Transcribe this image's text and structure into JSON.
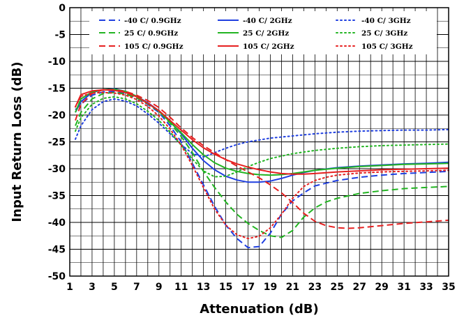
{
  "chart_data": {
    "type": "line",
    "xlabel": "Attenuation (dB)",
    "ylabel": "Input Return Loss (dB)",
    "xlim": [
      1,
      35
    ],
    "ylim": [
      -50,
      0
    ],
    "xticks": [
      1,
      3,
      5,
      7,
      9,
      11,
      13,
      15,
      17,
      19,
      21,
      23,
      25,
      27,
      29,
      31,
      33,
      35
    ],
    "yticks": [
      0,
      -5,
      -10,
      -15,
      -20,
      -25,
      -30,
      -35,
      -40,
      -45,
      -50
    ],
    "grid": true,
    "legend_position": "top",
    "series": [
      {
        "name": "-40 C/ 0.9GHz",
        "color": "#1f3fe0",
        "dash": "dashed",
        "points": [
          [
            1.5,
            -19
          ],
          [
            2,
            -18
          ],
          [
            3,
            -16.3
          ],
          [
            4,
            -15.7
          ],
          [
            5,
            -15.6
          ],
          [
            6,
            -16
          ],
          [
            7,
            -16.8
          ],
          [
            8,
            -18
          ],
          [
            9,
            -19.5
          ],
          [
            10,
            -22
          ],
          [
            11,
            -25
          ],
          [
            12,
            -29
          ],
          [
            13,
            -33
          ],
          [
            14,
            -37
          ],
          [
            15,
            -40.5
          ],
          [
            16,
            -43
          ],
          [
            17,
            -44.7
          ],
          [
            18,
            -44.5
          ],
          [
            19,
            -42
          ],
          [
            20,
            -38.5
          ],
          [
            21,
            -36
          ],
          [
            22,
            -34.5
          ],
          [
            23,
            -33.2
          ],
          [
            25,
            -32.2
          ],
          [
            27,
            -31.6
          ],
          [
            29,
            -31.2
          ],
          [
            31,
            -30.9
          ],
          [
            33,
            -30.7
          ],
          [
            35,
            -30.5
          ]
        ]
      },
      {
        "name": "-40 C/ 2GHz",
        "color": "#1f3fe0",
        "dash": "solid",
        "points": [
          [
            1.5,
            -19.5
          ],
          [
            2,
            -17.5
          ],
          [
            3,
            -15.8
          ],
          [
            4,
            -15.3
          ],
          [
            5,
            -15.1
          ],
          [
            6,
            -15.6
          ],
          [
            7,
            -16.5
          ],
          [
            8,
            -17.7
          ],
          [
            9,
            -19.2
          ],
          [
            10,
            -21.2
          ],
          [
            11,
            -23.5
          ],
          [
            12,
            -26.2
          ],
          [
            13,
            -28.5
          ],
          [
            14,
            -30.2
          ],
          [
            15,
            -31.4
          ],
          [
            16,
            -32.1
          ],
          [
            17,
            -32.5
          ],
          [
            18,
            -32.5
          ],
          [
            19,
            -32.3
          ],
          [
            20,
            -31.8
          ],
          [
            21,
            -31.2
          ],
          [
            22,
            -30.7
          ],
          [
            23,
            -30.3
          ],
          [
            25,
            -29.8
          ],
          [
            27,
            -29.5
          ],
          [
            29,
            -29.3
          ],
          [
            31,
            -29.1
          ],
          [
            33,
            -29
          ],
          [
            35,
            -28.8
          ]
        ]
      },
      {
        "name": "-40 C/ 3GHz",
        "color": "#1f3fe0",
        "dash": "dotted",
        "points": [
          [
            1.5,
            -24.5
          ],
          [
            2,
            -22
          ],
          [
            3,
            -19
          ],
          [
            4,
            -17.5
          ],
          [
            5,
            -17
          ],
          [
            6,
            -17.4
          ],
          [
            7,
            -18.3
          ],
          [
            8,
            -19.8
          ],
          [
            9,
            -21.5
          ],
          [
            10,
            -23.5
          ],
          [
            11,
            -25.5
          ],
          [
            12,
            -27.2
          ],
          [
            13,
            -27.8
          ],
          [
            14,
            -27
          ],
          [
            15,
            -26.2
          ],
          [
            16,
            -25.5
          ],
          [
            17,
            -25
          ],
          [
            19,
            -24.3
          ],
          [
            21,
            -23.9
          ],
          [
            23,
            -23.5
          ],
          [
            25,
            -23.2
          ],
          [
            27,
            -23
          ],
          [
            29,
            -22.9
          ],
          [
            31,
            -22.8
          ],
          [
            33,
            -22.8
          ],
          [
            35,
            -22.7
          ]
        ]
      },
      {
        "name": "25 C/ 0.9GHz",
        "color": "#22b422",
        "dash": "dashed",
        "points": [
          [
            1.5,
            -22
          ],
          [
            2,
            -19.5
          ],
          [
            3,
            -17
          ],
          [
            4,
            -16
          ],
          [
            5,
            -15.8
          ],
          [
            6,
            -16.1
          ],
          [
            7,
            -16.8
          ],
          [
            8,
            -17.9
          ],
          [
            9,
            -19.3
          ],
          [
            10,
            -21.5
          ],
          [
            11,
            -24
          ],
          [
            12,
            -27
          ],
          [
            13,
            -30.5
          ],
          [
            14,
            -33.5
          ],
          [
            15,
            -36.2
          ],
          [
            16,
            -38.5
          ],
          [
            17,
            -40.2
          ],
          [
            18,
            -41.5
          ],
          [
            19,
            -42.5
          ],
          [
            20,
            -42.8
          ],
          [
            21,
            -41.5
          ],
          [
            22,
            -39
          ],
          [
            23,
            -37.3
          ],
          [
            24,
            -36.2
          ],
          [
            25,
            -35.5
          ],
          [
            27,
            -34.6
          ],
          [
            29,
            -34.1
          ],
          [
            31,
            -33.7
          ],
          [
            33,
            -33.5
          ],
          [
            35,
            -33.3
          ]
        ]
      },
      {
        "name": "25 C/ 2GHz",
        "color": "#22b422",
        "dash": "solid",
        "points": [
          [
            1.5,
            -19.5
          ],
          [
            2,
            -17
          ],
          [
            3,
            -15.7
          ],
          [
            4,
            -15.3
          ],
          [
            5,
            -15.2
          ],
          [
            6,
            -15.6
          ],
          [
            7,
            -16.5
          ],
          [
            8,
            -17.8
          ],
          [
            9,
            -19.3
          ],
          [
            10,
            -21.3
          ],
          [
            11,
            -23.3
          ],
          [
            12,
            -25.5
          ],
          [
            13,
            -27.4
          ],
          [
            14,
            -28.9
          ],
          [
            15,
            -29.9
          ],
          [
            16,
            -30.5
          ],
          [
            17,
            -30.9
          ],
          [
            18,
            -31.1
          ],
          [
            19,
            -31.2
          ],
          [
            20,
            -31.1
          ],
          [
            21,
            -30.9
          ],
          [
            22,
            -30.6
          ],
          [
            23,
            -30.3
          ],
          [
            25,
            -29.9
          ],
          [
            27,
            -29.6
          ],
          [
            29,
            -29.4
          ],
          [
            31,
            -29.2
          ],
          [
            33,
            -29.1
          ],
          [
            35,
            -29
          ]
        ]
      },
      {
        "name": "25 C/ 3GHz",
        "color": "#22b422",
        "dash": "dotted",
        "points": [
          [
            1.5,
            -23
          ],
          [
            2,
            -20.5
          ],
          [
            3,
            -18
          ],
          [
            4,
            -16.9
          ],
          [
            5,
            -16.6
          ],
          [
            6,
            -17
          ],
          [
            7,
            -17.9
          ],
          [
            8,
            -19.3
          ],
          [
            9,
            -21
          ],
          [
            10,
            -23.2
          ],
          [
            11,
            -25.6
          ],
          [
            12,
            -28.2
          ],
          [
            13,
            -30.4
          ],
          [
            14,
            -31.5
          ],
          [
            15,
            -31.4
          ],
          [
            16,
            -30.6
          ],
          [
            17,
            -29.6
          ],
          [
            18,
            -28.8
          ],
          [
            19,
            -28.1
          ],
          [
            21,
            -27.2
          ],
          [
            23,
            -26.6
          ],
          [
            25,
            -26.2
          ],
          [
            27,
            -25.9
          ],
          [
            29,
            -25.7
          ],
          [
            31,
            -25.6
          ],
          [
            33,
            -25.5
          ],
          [
            35,
            -25.4
          ]
        ]
      },
      {
        "name": "105 C/ 0.9GHz",
        "color": "#e62020",
        "dash": "dashed",
        "points": [
          [
            1.5,
            -21
          ],
          [
            2,
            -18
          ],
          [
            3,
            -16
          ],
          [
            4,
            -15.3
          ],
          [
            5,
            -15.3
          ],
          [
            6,
            -15.6
          ],
          [
            7,
            -16.3
          ],
          [
            8,
            -17.3
          ],
          [
            9,
            -18.6
          ],
          [
            10,
            -20.4
          ],
          [
            11,
            -22.4
          ],
          [
            12,
            -24.2
          ],
          [
            13,
            -25.7
          ],
          [
            14,
            -27
          ],
          [
            15,
            -28.3
          ],
          [
            16,
            -29.5
          ],
          [
            17,
            -30.6
          ],
          [
            18,
            -31.7
          ],
          [
            19,
            -33
          ],
          [
            20,
            -34.5
          ],
          [
            21,
            -36.3
          ],
          [
            22,
            -38.3
          ],
          [
            23,
            -39.8
          ],
          [
            24,
            -40.6
          ],
          [
            25,
            -41
          ],
          [
            26,
            -41.1
          ],
          [
            27,
            -41
          ],
          [
            29,
            -40.6
          ],
          [
            31,
            -40.2
          ],
          [
            33,
            -39.9
          ],
          [
            35,
            -39.6
          ]
        ]
      },
      {
        "name": "105 C/ 2GHz",
        "color": "#e62020",
        "dash": "solid",
        "points": [
          [
            1.5,
            -18.5
          ],
          [
            2,
            -16.2
          ],
          [
            3,
            -15.5
          ],
          [
            4,
            -15.3
          ],
          [
            5,
            -15.4
          ],
          [
            6,
            -15.8
          ],
          [
            7,
            -16.6
          ],
          [
            8,
            -17.8
          ],
          [
            9,
            -19.2
          ],
          [
            10,
            -21
          ],
          [
            11,
            -22.8
          ],
          [
            12,
            -24.6
          ],
          [
            13,
            -26.1
          ],
          [
            14,
            -27.3
          ],
          [
            15,
            -28.3
          ],
          [
            16,
            -29.1
          ],
          [
            17,
            -29.7
          ],
          [
            18,
            -30.2
          ],
          [
            19,
            -30.6
          ],
          [
            20,
            -30.9
          ],
          [
            21,
            -31
          ],
          [
            22,
            -31
          ],
          [
            23,
            -30.9
          ],
          [
            25,
            -30.6
          ],
          [
            27,
            -30.4
          ],
          [
            29,
            -30.2
          ],
          [
            31,
            -30.1
          ],
          [
            33,
            -30
          ],
          [
            35,
            -29.9
          ]
        ]
      },
      {
        "name": "105 C/ 3GHz",
        "color": "#e62020",
        "dash": "dotted",
        "points": [
          [
            1.5,
            -18.5
          ],
          [
            2,
            -16.5
          ],
          [
            3,
            -15.9
          ],
          [
            4,
            -15.8
          ],
          [
            5,
            -15.9
          ],
          [
            6,
            -16.3
          ],
          [
            7,
            -17.1
          ],
          [
            8,
            -18.4
          ],
          [
            9,
            -20.2
          ],
          [
            10,
            -22.6
          ],
          [
            11,
            -25.6
          ],
          [
            12,
            -29.4
          ],
          [
            13,
            -33.5
          ],
          [
            14,
            -37.5
          ],
          [
            15,
            -40.5
          ],
          [
            16,
            -42.3
          ],
          [
            17,
            -43
          ],
          [
            18,
            -42.6
          ],
          [
            19,
            -41
          ],
          [
            20,
            -38.5
          ],
          [
            21,
            -35.5
          ],
          [
            22,
            -33.3
          ],
          [
            23,
            -32.2
          ],
          [
            24,
            -31.6
          ],
          [
            25,
            -31.2
          ],
          [
            27,
            -30.8
          ],
          [
            29,
            -30.6
          ],
          [
            31,
            -30.5
          ],
          [
            33,
            -30.4
          ],
          [
            35,
            -30.3
          ]
        ]
      }
    ]
  }
}
